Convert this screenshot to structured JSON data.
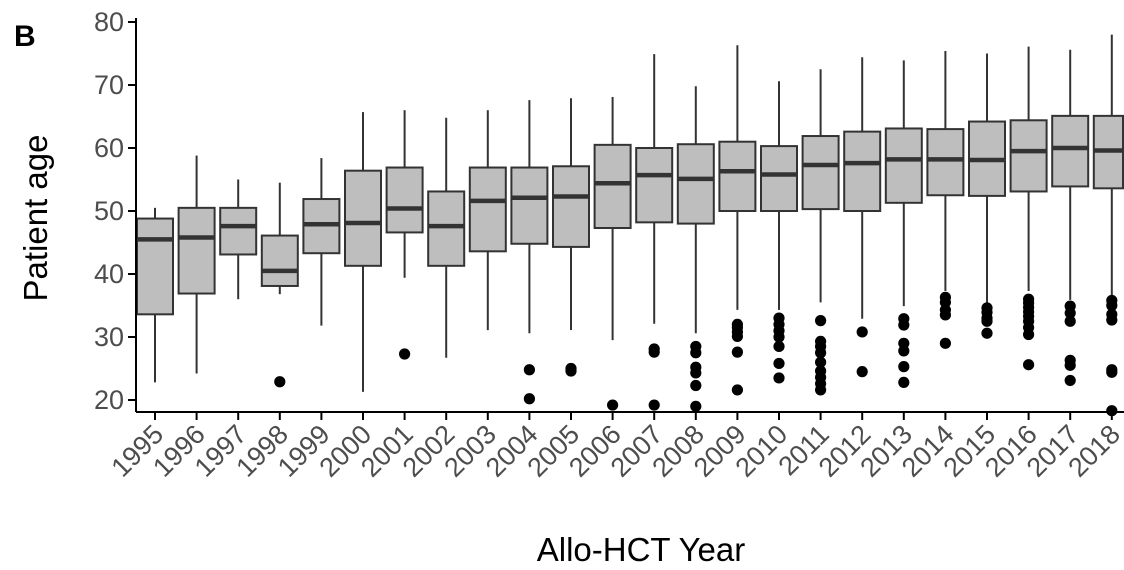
{
  "panel_label": "B",
  "chart_data": {
    "type": "box",
    "xlabel": "Allo-HCT Year",
    "ylabel": "Patient age",
    "ylim": [
      18,
      80
    ],
    "yticks": [
      20,
      30,
      40,
      50,
      60,
      70,
      80
    ],
    "grid": false,
    "colors": {
      "box_fill": "#bebebe",
      "box_stroke": "#333333",
      "axis": "#000000",
      "tick_text": "#4d4d4d"
    },
    "categories": [
      "1995",
      "1996",
      "1997",
      "1998",
      "1999",
      "2000",
      "2001",
      "2002",
      "2003",
      "2004",
      "2005",
      "2006",
      "2007",
      "2008",
      "2009",
      "2010",
      "2011",
      "2012",
      "2013",
      "2014",
      "2015",
      "2016",
      "2017",
      "2018"
    ],
    "boxes": [
      {
        "year": "1995",
        "min": 22.8,
        "q1": 33.6,
        "median": 45.5,
        "q3": 48.8,
        "max": 50.5,
        "outliers": []
      },
      {
        "year": "1996",
        "min": 24.2,
        "q1": 36.9,
        "median": 45.8,
        "q3": 50.5,
        "max": 58.8,
        "outliers": []
      },
      {
        "year": "1997",
        "min": 36.0,
        "q1": 43.1,
        "median": 47.6,
        "q3": 50.5,
        "max": 55.0,
        "outliers": []
      },
      {
        "year": "1998",
        "min": 36.8,
        "q1": 38.1,
        "median": 40.5,
        "q3": 46.1,
        "max": 54.5,
        "outliers": [
          22.9
        ]
      },
      {
        "year": "1999",
        "min": 31.8,
        "q1": 43.3,
        "median": 47.9,
        "q3": 51.9,
        "max": 58.4,
        "outliers": []
      },
      {
        "year": "2000",
        "min": 21.3,
        "q1": 41.3,
        "median": 48.1,
        "q3": 56.4,
        "max": 65.7,
        "outliers": []
      },
      {
        "year": "2001",
        "min": 39.4,
        "q1": 46.6,
        "median": 50.4,
        "q3": 56.9,
        "max": 66.0,
        "outliers": [
          27.3
        ]
      },
      {
        "year": "2002",
        "min": 26.7,
        "q1": 41.3,
        "median": 47.6,
        "q3": 53.1,
        "max": 64.8,
        "outliers": []
      },
      {
        "year": "2003",
        "min": 31.1,
        "q1": 43.6,
        "median": 51.6,
        "q3": 56.9,
        "max": 66.0,
        "outliers": []
      },
      {
        "year": "2004",
        "min": 30.6,
        "q1": 44.8,
        "median": 52.1,
        "q3": 56.9,
        "max": 67.6,
        "outliers": [
          24.8,
          20.2
        ]
      },
      {
        "year": "2005",
        "min": 31.1,
        "q1": 44.3,
        "median": 52.3,
        "q3": 57.1,
        "max": 67.9,
        "outliers": [
          25.0,
          24.6
        ]
      },
      {
        "year": "2006",
        "min": 29.5,
        "q1": 47.3,
        "median": 54.4,
        "q3": 60.5,
        "max": 68.1,
        "outliers": [
          19.2
        ]
      },
      {
        "year": "2007",
        "min": 32.1,
        "q1": 48.2,
        "median": 55.7,
        "q3": 60.0,
        "max": 74.9,
        "outliers": [
          28.1,
          27.6,
          19.2
        ]
      },
      {
        "year": "2008",
        "min": 30.6,
        "q1": 48.0,
        "median": 55.1,
        "q3": 60.6,
        "max": 69.8,
        "outliers": [
          28.5,
          27.5,
          25.2,
          24.3,
          22.3,
          19.0
        ]
      },
      {
        "year": "2009",
        "min": 34.3,
        "q1": 50.0,
        "median": 56.3,
        "q3": 61.0,
        "max": 76.3,
        "outliers": [
          32.0,
          31.5,
          30.8,
          30.1,
          27.6,
          21.6
        ]
      },
      {
        "year": "2010",
        "min": 34.3,
        "q1": 50.0,
        "median": 55.8,
        "q3": 60.3,
        "max": 70.6,
        "outliers": [
          33.0,
          32.0,
          31.0,
          30.0,
          28.5,
          25.8,
          23.5
        ]
      },
      {
        "year": "2011",
        "min": 35.5,
        "q1": 50.3,
        "median": 57.3,
        "q3": 61.9,
        "max": 72.5,
        "outliers": [
          32.6,
          29.3,
          28.5,
          27.5,
          26.0,
          24.6,
          23.6,
          22.6,
          21.6
        ]
      },
      {
        "year": "2012",
        "min": 32.9,
        "q1": 50.0,
        "median": 57.6,
        "q3": 62.6,
        "max": 74.4,
        "outliers": [
          30.8,
          24.5
        ]
      },
      {
        "year": "2013",
        "min": 34.9,
        "q1": 51.3,
        "median": 58.2,
        "q3": 63.1,
        "max": 73.9,
        "outliers": [
          32.9,
          31.9,
          29.0,
          27.8,
          25.3,
          22.8
        ]
      },
      {
        "year": "2014",
        "min": 37.3,
        "q1": 52.5,
        "median": 58.2,
        "q3": 63.0,
        "max": 75.4,
        "outliers": [
          36.3,
          35.5,
          34.3,
          33.5,
          29.0
        ]
      },
      {
        "year": "2015",
        "min": 35.3,
        "q1": 52.4,
        "median": 58.1,
        "q3": 64.2,
        "max": 75.0,
        "outliers": [
          34.6,
          33.9,
          33.0,
          32.5,
          30.6
        ]
      },
      {
        "year": "2016",
        "min": 37.3,
        "q1": 53.1,
        "median": 59.5,
        "q3": 64.4,
        "max": 76.1,
        "outliers": [
          36.0,
          35.4,
          34.7,
          34.0,
          33.3,
          32.5,
          31.5,
          30.4,
          25.6
        ]
      },
      {
        "year": "2017",
        "min": 35.9,
        "q1": 53.9,
        "median": 60.0,
        "q3": 65.1,
        "max": 75.6,
        "outliers": [
          34.9,
          33.8,
          32.5,
          26.3,
          25.5,
          23.1
        ]
      },
      {
        "year": "2018",
        "min": 36.3,
        "q1": 53.6,
        "median": 59.6,
        "q3": 65.1,
        "max": 78.0,
        "outliers": [
          35.8,
          35.0,
          33.6,
          32.7,
          24.8,
          24.4,
          18.3
        ]
      }
    ]
  }
}
